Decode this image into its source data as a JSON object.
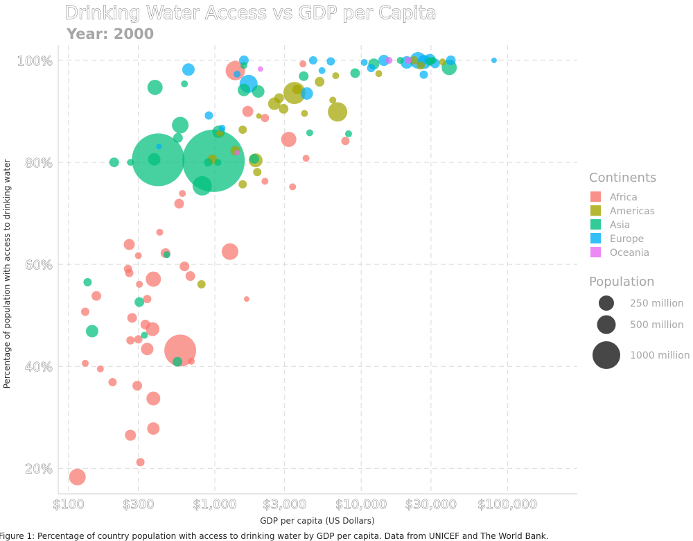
{
  "chart_data": {
    "type": "scatter",
    "title": "Drinking Water Access vs GDP per Capita",
    "subtitle": "Year: 2000",
    "xlabel": "GDP per capita (US Dollars)",
    "ylabel": "Percentage of population with access to drinking water",
    "caption": "Figure 1: Percentage of country population with access to drinking water by GDP per capita. Data from UNICEF and The World Bank.",
    "x_scale": "log",
    "xlim": [
      85,
      300000
    ],
    "ylim": [
      15,
      103
    ],
    "x_ticks": [
      100,
      300,
      1000,
      3000,
      10000,
      30000,
      100000
    ],
    "x_tick_labels": [
      "$100",
      "$300",
      "$1,000",
      "$3,000",
      "$10,000",
      "$30,000",
      "$100,000"
    ],
    "y_ticks": [
      20,
      40,
      60,
      80,
      100
    ],
    "y_tick_labels": [
      "20%",
      "40%",
      "60%",
      "80%",
      "100%"
    ],
    "grid": true,
    "legend_position": "right",
    "continents_legend": {
      "title": "Continents",
      "items": [
        {
          "name": "Africa",
          "color": "#f8766d"
        },
        {
          "name": "Americas",
          "color": "#a3a500"
        },
        {
          "name": "Asia",
          "color": "#00bf7d"
        },
        {
          "name": "Europe",
          "color": "#00b0f6"
        },
        {
          "name": "Oceania",
          "color": "#e76bf3"
        }
      ]
    },
    "population_legend": {
      "title": "Population",
      "items": [
        {
          "label": "250 million",
          "value": 250
        },
        {
          "label": "500 million",
          "value": 500
        },
        {
          "label": "1000 million",
          "value": 1000
        }
      ]
    },
    "points": [
      {
        "c": "Africa",
        "x": 115,
        "y": 18.3,
        "p": 12
      },
      {
        "c": "Africa",
        "x": 310,
        "y": 21.2,
        "p": 6
      },
      {
        "c": "Africa",
        "x": 265,
        "y": 26.5,
        "p": 8
      },
      {
        "c": "Africa",
        "x": 380,
        "y": 27.8,
        "p": 9
      },
      {
        "c": "Africa",
        "x": 380,
        "y": 33.7,
        "p": 10
      },
      {
        "c": "Africa",
        "x": 295,
        "y": 36.2,
        "p": 7
      },
      {
        "c": "Africa",
        "x": 200,
        "y": 36.9,
        "p": 6
      },
      {
        "c": "Africa",
        "x": 165,
        "y": 39.5,
        "p": 5
      },
      {
        "c": "Africa",
        "x": 130,
        "y": 40.6,
        "p": 5
      },
      {
        "c": "Africa",
        "x": 580,
        "y": 43.1,
        "p": 23
      },
      {
        "c": "Africa",
        "x": 345,
        "y": 43.4,
        "p": 9
      },
      {
        "c": "Africa",
        "x": 265,
        "y": 45.1,
        "p": 6
      },
      {
        "c": "Africa",
        "x": 300,
        "y": 45.3,
        "p": 6
      },
      {
        "c": "Africa",
        "x": 375,
        "y": 47.3,
        "p": 10
      },
      {
        "c": "Africa",
        "x": 335,
        "y": 48.2,
        "p": 7
      },
      {
        "c": "Africa",
        "x": 272,
        "y": 49.5,
        "p": 7
      },
      {
        "c": "Africa",
        "x": 130,
        "y": 50.7,
        "p": 6
      },
      {
        "c": "Africa",
        "x": 345,
        "y": 53.2,
        "p": 6
      },
      {
        "c": "Africa",
        "x": 155,
        "y": 53.8,
        "p": 7
      },
      {
        "c": "Africa",
        "x": 305,
        "y": 56.1,
        "p": 5
      },
      {
        "c": "Africa",
        "x": 380,
        "y": 57.1,
        "p": 11
      },
      {
        "c": "Africa",
        "x": 260,
        "y": 58.3,
        "p": 6
      },
      {
        "c": "Africa",
        "x": 255,
        "y": 59.1,
        "p": 6
      },
      {
        "c": "Africa",
        "x": 620,
        "y": 59.6,
        "p": 7
      },
      {
        "c": "Africa",
        "x": 680,
        "y": 57.7,
        "p": 7
      },
      {
        "c": "Africa",
        "x": 460,
        "y": 62.2,
        "p": 7
      },
      {
        "c": "Africa",
        "x": 300,
        "y": 61.7,
        "p": 5
      },
      {
        "c": "Africa",
        "x": 1270,
        "y": 62.5,
        "p": 12
      },
      {
        "c": "Africa",
        "x": 260,
        "y": 63.9,
        "p": 8
      },
      {
        "c": "Africa",
        "x": 420,
        "y": 66.3,
        "p": 5
      },
      {
        "c": "Africa",
        "x": 570,
        "y": 71.9,
        "p": 7
      },
      {
        "c": "Africa",
        "x": 600,
        "y": 73.9,
        "p": 5
      },
      {
        "c": "Africa",
        "x": 690,
        "y": 41.0,
        "p": 5
      },
      {
        "c": "Africa",
        "x": 1650,
        "y": 53.2,
        "p": 4
      },
      {
        "c": "Africa",
        "x": 2200,
        "y": 76.3,
        "p": 5
      },
      {
        "c": "Africa",
        "x": 3400,
        "y": 75.2,
        "p": 5
      },
      {
        "c": "Africa",
        "x": 3200,
        "y": 84.5,
        "p": 11
      },
      {
        "c": "Africa",
        "x": 4200,
        "y": 80.8,
        "p": 5
      },
      {
        "c": "Africa",
        "x": 7800,
        "y": 84.2,
        "p": 6
      },
      {
        "c": "Africa",
        "x": 1680,
        "y": 90.0,
        "p": 8
      },
      {
        "c": "Africa",
        "x": 2200,
        "y": 88.7,
        "p": 6
      },
      {
        "c": "Africa",
        "x": 1380,
        "y": 98.0,
        "p": 14
      },
      {
        "c": "Africa",
        "x": 4000,
        "y": 99.3,
        "p": 5
      },
      {
        "c": "Americas",
        "x": 1380,
        "y": 82.3,
        "p": 7
      },
      {
        "c": "Americas",
        "x": 960,
        "y": 80.6,
        "p": 7
      },
      {
        "c": "Americas",
        "x": 1900,
        "y": 80.4,
        "p": 10
      },
      {
        "c": "Americas",
        "x": 1950,
        "y": 78.1,
        "p": 6
      },
      {
        "c": "Americas",
        "x": 1550,
        "y": 75.7,
        "p": 6
      },
      {
        "c": "Americas",
        "x": 810,
        "y": 56.1,
        "p": 6
      },
      {
        "c": "Americas",
        "x": 1080,
        "y": 85.7,
        "p": 5
      },
      {
        "c": "Americas",
        "x": 1550,
        "y": 86.4,
        "p": 6
      },
      {
        "c": "Americas",
        "x": 2000,
        "y": 89.1,
        "p": 4
      },
      {
        "c": "Americas",
        "x": 2550,
        "y": 91.5,
        "p": 9
      },
      {
        "c": "Americas",
        "x": 2750,
        "y": 92.6,
        "p": 7
      },
      {
        "c": "Americas",
        "x": 2950,
        "y": 90.5,
        "p": 7
      },
      {
        "c": "Americas",
        "x": 3500,
        "y": 93.6,
        "p": 16
      },
      {
        "c": "Americas",
        "x": 3650,
        "y": 94.3,
        "p": 7
      },
      {
        "c": "Americas",
        "x": 4100,
        "y": 89.6,
        "p": 5
      },
      {
        "c": "Americas",
        "x": 5200,
        "y": 95.8,
        "p": 7
      },
      {
        "c": "Americas",
        "x": 6400,
        "y": 92.2,
        "p": 5
      },
      {
        "c": "Americas",
        "x": 6900,
        "y": 89.9,
        "p": 14
      },
      {
        "c": "Americas",
        "x": 6700,
        "y": 97.0,
        "p": 5
      },
      {
        "c": "Americas",
        "x": 13200,
        "y": 97.4,
        "p": 5
      },
      {
        "c": "Americas",
        "x": 23000,
        "y": 100,
        "p": 6
      },
      {
        "c": "Americas",
        "x": 36000,
        "y": 99.7,
        "p": 5
      },
      {
        "c": "Americas",
        "x": 25500,
        "y": 99.0,
        "p": 6
      },
      {
        "c": "Asia",
        "x": 980,
        "y": 80.3,
        "p": 45
      },
      {
        "c": "Asia",
        "x": 410,
        "y": 80.5,
        "p": 38
      },
      {
        "c": "Asia",
        "x": 385,
        "y": 80.6,
        "p": 9
      },
      {
        "c": "Asia",
        "x": 1860,
        "y": 80.7,
        "p": 7
      },
      {
        "c": "Asia",
        "x": 265,
        "y": 80.0,
        "p": 5
      },
      {
        "c": "Asia",
        "x": 205,
        "y": 80.0,
        "p": 7
      },
      {
        "c": "Asia",
        "x": 900,
        "y": 80.0,
        "p": 6
      },
      {
        "c": "Asia",
        "x": 1050,
        "y": 80.0,
        "p": 5
      },
      {
        "c": "Asia",
        "x": 580,
        "y": 87.3,
        "p": 12
      },
      {
        "c": "Asia",
        "x": 560,
        "y": 84.8,
        "p": 7
      },
      {
        "c": "Asia",
        "x": 820,
        "y": 75.4,
        "p": 14
      },
      {
        "c": "Asia",
        "x": 1060,
        "y": 86.0,
        "p": 9
      },
      {
        "c": "Asia",
        "x": 390,
        "y": 94.7,
        "p": 11
      },
      {
        "c": "Asia",
        "x": 620,
        "y": 95.4,
        "p": 5
      },
      {
        "c": "Asia",
        "x": 1580,
        "y": 94.2,
        "p": 9
      },
      {
        "c": "Asia",
        "x": 1980,
        "y": 93.9,
        "p": 9
      },
      {
        "c": "Asia",
        "x": 1580,
        "y": 99.0,
        "p": 5
      },
      {
        "c": "Asia",
        "x": 4050,
        "y": 96.9,
        "p": 7
      },
      {
        "c": "Asia",
        "x": 4450,
        "y": 85.8,
        "p": 5
      },
      {
        "c": "Asia",
        "x": 8200,
        "y": 85.6,
        "p": 5
      },
      {
        "c": "Asia",
        "x": 9100,
        "y": 97.5,
        "p": 7
      },
      {
        "c": "Asia",
        "x": 12200,
        "y": 99.3,
        "p": 8
      },
      {
        "c": "Asia",
        "x": 18500,
        "y": 100,
        "p": 5
      },
      {
        "c": "Asia",
        "x": 29500,
        "y": 99.8,
        "p": 6
      },
      {
        "c": "Asia",
        "x": 40000,
        "y": 98.6,
        "p": 11
      },
      {
        "c": "Asia",
        "x": 31000,
        "y": 100,
        "p": 5
      },
      {
        "c": "Asia",
        "x": 330,
        "y": 46.1,
        "p": 5
      },
      {
        "c": "Asia",
        "x": 145,
        "y": 46.9,
        "p": 9
      },
      {
        "c": "Asia",
        "x": 305,
        "y": 52.6,
        "p": 7
      },
      {
        "c": "Asia",
        "x": 135,
        "y": 56.5,
        "p": 6
      },
      {
        "c": "Asia",
        "x": 555,
        "y": 40.9,
        "p": 7
      },
      {
        "c": "Asia",
        "x": 470,
        "y": 61.9,
        "p": 5
      },
      {
        "c": "Europe",
        "x": 415,
        "y": 83.1,
        "p": 4
      },
      {
        "c": "Europe",
        "x": 1120,
        "y": 86.7,
        "p": 5
      },
      {
        "c": "Europe",
        "x": 910,
        "y": 89.2,
        "p": 6
      },
      {
        "c": "Europe",
        "x": 1700,
        "y": 95.4,
        "p": 13
      },
      {
        "c": "Europe",
        "x": 4250,
        "y": 93.5,
        "p": 9
      },
      {
        "c": "Europe",
        "x": 660,
        "y": 98.2,
        "p": 9
      },
      {
        "c": "Europe",
        "x": 1580,
        "y": 100,
        "p": 7
      },
      {
        "c": "Europe",
        "x": 1420,
        "y": 97.3,
        "p": 5
      },
      {
        "c": "Europe",
        "x": 4700,
        "y": 100,
        "p": 6
      },
      {
        "c": "Europe",
        "x": 5400,
        "y": 98.0,
        "p": 5
      },
      {
        "c": "Europe",
        "x": 6200,
        "y": 99.8,
        "p": 6
      },
      {
        "c": "Europe",
        "x": 10500,
        "y": 99.6,
        "p": 5
      },
      {
        "c": "Europe",
        "x": 11700,
        "y": 98.5,
        "p": 6
      },
      {
        "c": "Europe",
        "x": 14300,
        "y": 100,
        "p": 8
      },
      {
        "c": "Europe",
        "x": 20500,
        "y": 99.6,
        "p": 9
      },
      {
        "c": "Europe",
        "x": 24500,
        "y": 100,
        "p": 12
      },
      {
        "c": "Europe",
        "x": 27000,
        "y": 99.7,
        "p": 10
      },
      {
        "c": "Europe",
        "x": 29500,
        "y": 100.2,
        "p": 8
      },
      {
        "c": "Europe",
        "x": 32000,
        "y": 99.4,
        "p": 7
      },
      {
        "c": "Europe",
        "x": 41000,
        "y": 100,
        "p": 7
      },
      {
        "c": "Europe",
        "x": 26800,
        "y": 97.2,
        "p": 6
      },
      {
        "c": "Europe",
        "x": 81000,
        "y": 100,
        "p": 4
      },
      {
        "c": "Oceania",
        "x": 2050,
        "y": 98.3,
        "p": 4
      },
      {
        "c": "Oceania",
        "x": 1420,
        "y": 81.9,
        "p": 4
      },
      {
        "c": "Oceania",
        "x": 15500,
        "y": 100,
        "p": 5
      },
      {
        "c": "Oceania",
        "x": 21000,
        "y": 100,
        "p": 5
      }
    ]
  }
}
